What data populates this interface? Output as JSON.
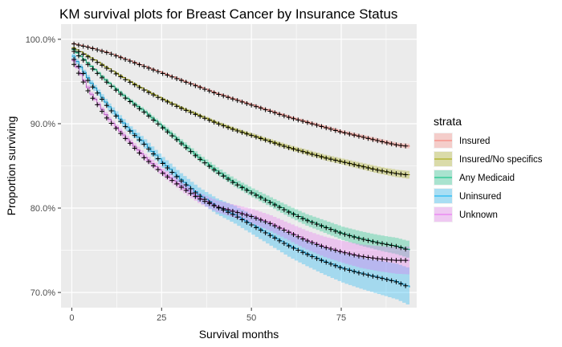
{
  "chart_data": {
    "type": "line",
    "title": "KM survival plots for Breast Cancer by Insurance Status",
    "xlabel": "Survival months",
    "ylabel": "Proportion surviving",
    "xlim": [
      -3,
      96
    ],
    "ylim": [
      68.2,
      101.8
    ],
    "x_ticks": [
      0,
      25,
      50,
      75
    ],
    "x_tick_labels": [
      "0",
      "25",
      "50",
      "75"
    ],
    "y_ticks": [
      70,
      80,
      90,
      100
    ],
    "y_tick_labels": [
      "70.0%",
      "80.0%",
      "90.0%",
      "100.0%"
    ],
    "grid": true,
    "legend": {
      "title": "strata",
      "position": "right"
    },
    "series": [
      {
        "name": "Insured",
        "color": "#F8766D",
        "x": [
          0,
          5,
          10,
          15,
          20,
          25,
          30,
          35,
          40,
          45,
          50,
          55,
          60,
          65,
          70,
          75,
          80,
          85,
          90,
          94
        ],
        "y": [
          99.5,
          99.0,
          98.4,
          97.6,
          96.8,
          96.0,
          95.2,
          94.4,
          93.6,
          92.9,
          92.2,
          91.5,
          90.8,
          90.2,
          89.6,
          89.0,
          88.5,
          88.0,
          87.5,
          87.3
        ],
        "band": 0.15
      },
      {
        "name": "Insured/No specifics",
        "color": "#A3A500",
        "x": [
          0,
          5,
          10,
          15,
          20,
          25,
          30,
          35,
          40,
          45,
          50,
          55,
          60,
          65,
          70,
          75,
          80,
          85,
          90,
          94
        ],
        "y": [
          99.0,
          97.8,
          96.5,
          95.2,
          94.0,
          92.9,
          91.9,
          91.0,
          90.1,
          89.3,
          88.6,
          87.9,
          87.2,
          86.6,
          86.0,
          85.5,
          85.0,
          84.5,
          84.1,
          83.9
        ],
        "band": 0.25
      },
      {
        "name": "Any Medicaid",
        "color": "#00BF7D",
        "x": [
          0,
          5,
          10,
          15,
          20,
          25,
          30,
          35,
          40,
          45,
          50,
          55,
          60,
          65,
          70,
          75,
          80,
          85,
          90,
          94
        ],
        "y": [
          98.8,
          96.8,
          94.8,
          93.0,
          91.4,
          89.6,
          87.8,
          86.0,
          84.4,
          83.0,
          81.8,
          80.7,
          79.6,
          78.6,
          77.8,
          77.0,
          76.4,
          75.9,
          75.5,
          75.0
        ],
        "band": 0.55
      },
      {
        "name": "Uninsured",
        "color": "#00B0F6",
        "x": [
          0,
          5,
          10,
          15,
          20,
          25,
          30,
          35,
          40,
          45,
          50,
          55,
          60,
          65,
          70,
          75,
          80,
          85,
          90,
          94
        ],
        "y": [
          98.0,
          94.8,
          92.0,
          89.6,
          87.6,
          85.4,
          83.4,
          81.6,
          80.2,
          79.2,
          78.0,
          76.8,
          75.6,
          74.6,
          73.7,
          72.9,
          72.3,
          71.8,
          71.3,
          70.6
        ],
        "band": 1.2
      },
      {
        "name": "Unknown",
        "color": "#E76BF3",
        "x": [
          0,
          5,
          10,
          15,
          20,
          25,
          30,
          35,
          40,
          45,
          50,
          55,
          60,
          65,
          70,
          75,
          80,
          85,
          90,
          94
        ],
        "y": [
          97.5,
          93.5,
          90.5,
          88.2,
          86.0,
          84.2,
          82.6,
          81.2,
          80.2,
          79.6,
          79.0,
          78.2,
          77.2,
          76.2,
          75.4,
          74.8,
          74.3,
          74.0,
          73.8,
          73.8
        ],
        "band": 0.9
      }
    ]
  }
}
